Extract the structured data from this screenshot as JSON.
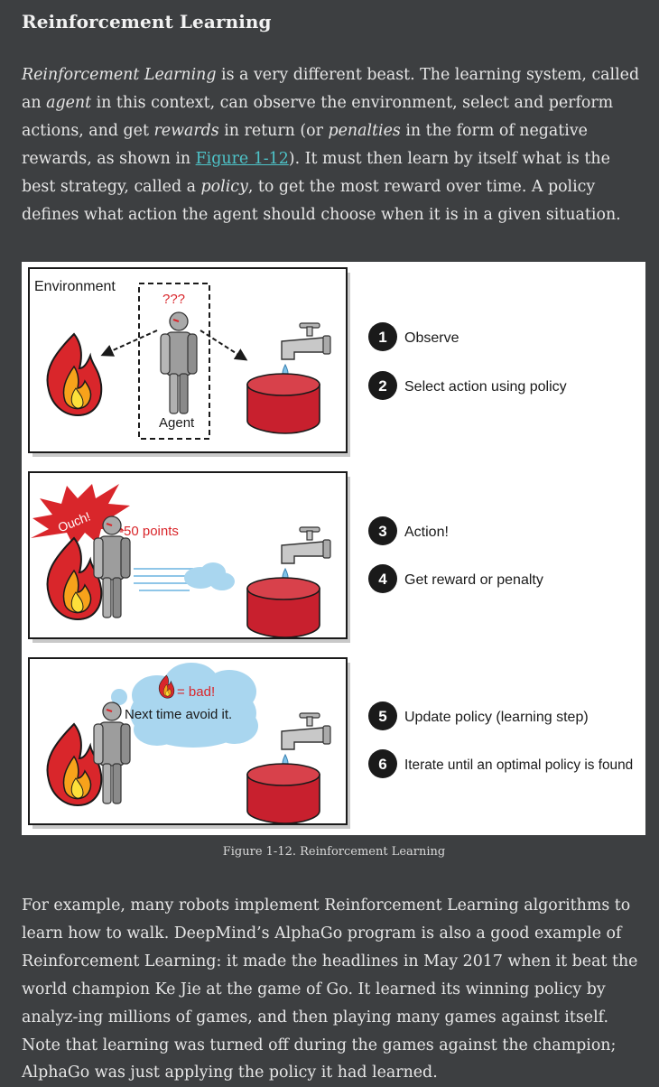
{
  "section": {
    "title": "Reinforcement Learning"
  },
  "para1": {
    "s1": "Reinforcement Learning",
    "s2": " is a very different beast. The learning system, called an ",
    "s3": "agent",
    "s4": " in this context, can observe the environment, select and perform actions, and get ",
    "s5": "rewards",
    "s6": " in return (or ",
    "s7": "penalties",
    "s8": " in the form of negative rewards, as shown in ",
    "link": "Figure 1-12",
    "s9": "). It must then learn by itself what is the best strategy, called a ",
    "s10": "policy",
    "s11": ", to get the most reward over time. A policy defines what action the agent should choose when it is in a given situation."
  },
  "figure": {
    "environment_label": "Environment",
    "question_marks": "???",
    "agent_label": "Agent",
    "ouch_label": "Ouch!",
    "points_label": "-50 points",
    "bad_label": "= bad!",
    "avoid_label": "Next time avoid it.",
    "steps": [
      {
        "num": "1",
        "text": "Observe"
      },
      {
        "num": "2",
        "text": "Select action using policy"
      },
      {
        "num": "3",
        "text": "Action!"
      },
      {
        "num": "4",
        "text": "Get reward or penalty"
      },
      {
        "num": "5",
        "text": "Update policy (learning step)"
      },
      {
        "num": "6",
        "text": "Iterate until an optimal policy is found"
      }
    ],
    "colors": {
      "fire_outer": "#d9262b",
      "fire_inner": "#f7a21b",
      "fire_core": "#fde03a",
      "barrel": "#c8202e",
      "cloud": "#a9d6ef",
      "robot": "#9a9a9a"
    }
  },
  "caption": "Figure 1-12. Reinforcement Learning",
  "para2": {
    "text": "For example, many robots implement Reinforcement Learning algorithms to learn how to walk. DeepMind’s AlphaGo program is also a good example of Reinforcement Learning: it made the headlines in May 2017 when it beat the world champion Ke Jie at the game of Go. It learned its winning policy by analyz-ing millions of games, and then playing many games against itself. Note that learning was turned off during the games against the champion; AlphaGo was just applying the policy it had learned."
  }
}
